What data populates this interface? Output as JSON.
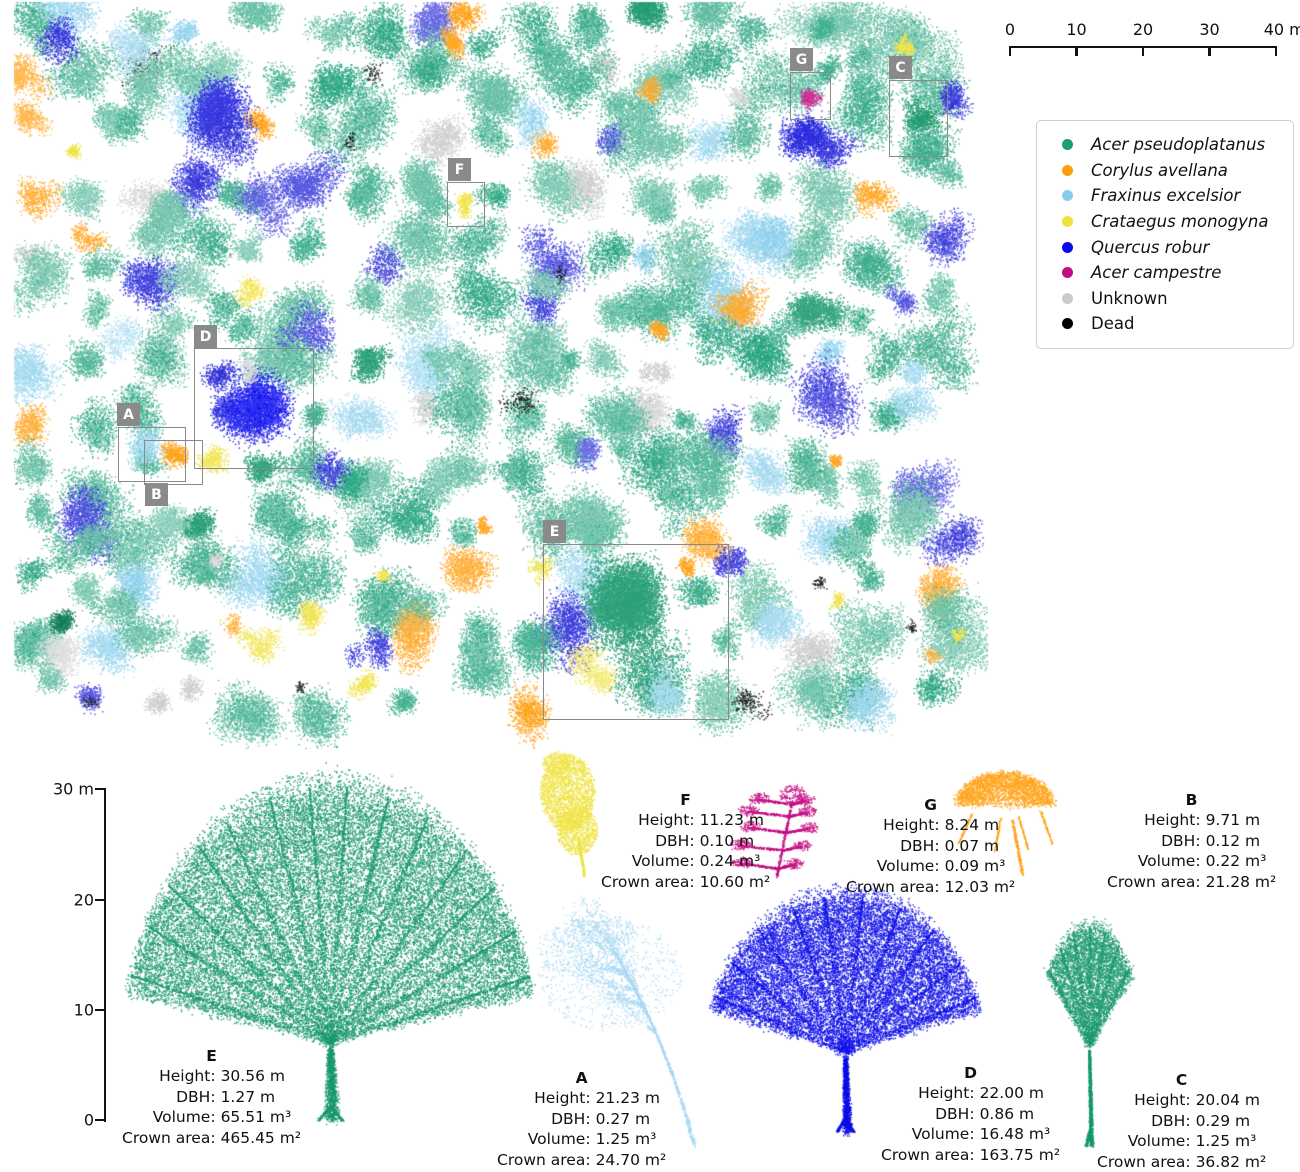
{
  "legend": {
    "items": [
      {
        "label": "Acer pseudoplatanus",
        "color": "#1b9e77",
        "italic": true
      },
      {
        "label": "Corylus avellana",
        "color": "#ff9d0c",
        "italic": true
      },
      {
        "label": "Fraxinus excelsior",
        "color": "#87ceeb",
        "italic": true
      },
      {
        "label": "Crataegus monogyna",
        "color": "#efe23d",
        "italic": true
      },
      {
        "label": "Quercus robur",
        "color": "#0a0af0",
        "italic": true
      },
      {
        "label": "Acer campestre",
        "color": "#c40d82",
        "italic": true
      },
      {
        "label": "Unknown",
        "color": "#cbcbcb",
        "italic": false
      },
      {
        "label": "Dead",
        "color": "#000000",
        "italic": false
      }
    ]
  },
  "scale_bar": {
    "tick_labels": [
      "0",
      "10",
      "20",
      "30",
      "40 m"
    ]
  },
  "height_axis": {
    "tick_labels": [
      "30 m",
      "20",
      "10",
      "0"
    ]
  },
  "map": {
    "region_labels": {
      "a": "A",
      "b": "B",
      "c": "C",
      "d": "D",
      "e": "E",
      "f": "F",
      "g": "G"
    }
  },
  "stat_labels": {
    "height": "Height:",
    "dbh": "DBH:",
    "volume": "Volume:",
    "crown_area": "Crown area:"
  },
  "trees": [
    {
      "id": "E",
      "color": "#18986b",
      "height": "30.56 m",
      "dbh": "1.27 m",
      "volume": "65.51 m³",
      "crown_area": "465.45 m²"
    },
    {
      "id": "F",
      "color": "#efe23d",
      "height": "11.23 m",
      "dbh": "0.10 m",
      "volume": "0.24 m³",
      "crown_area": "10.60 m²"
    },
    {
      "id": "G",
      "color": "#c40d82",
      "height": "8.24 m",
      "dbh": "0.07 m",
      "volume": "0.09 m³",
      "crown_area": "12.03 m²"
    },
    {
      "id": "B",
      "color": "#ffa217",
      "height": "9.71 m",
      "dbh": "0.12 m",
      "volume": "0.22 m³",
      "crown_area": "21.28 m²"
    },
    {
      "id": "A",
      "color": "#a6d7f2",
      "height": "21.23 m",
      "dbh": "0.27 m",
      "volume": "1.25 m³",
      "crown_area": "24.70 m²"
    },
    {
      "id": "D",
      "color": "#0d0de8",
      "height": "22.00 m",
      "dbh": "0.86 m",
      "volume": "16.48 m³",
      "crown_area": "163.75 m²"
    },
    {
      "id": "C",
      "color": "#18986b",
      "height": "20.04 m",
      "dbh": "0.29 m",
      "volume": "1.25 m³",
      "crown_area": "36.82 m²"
    }
  ]
}
